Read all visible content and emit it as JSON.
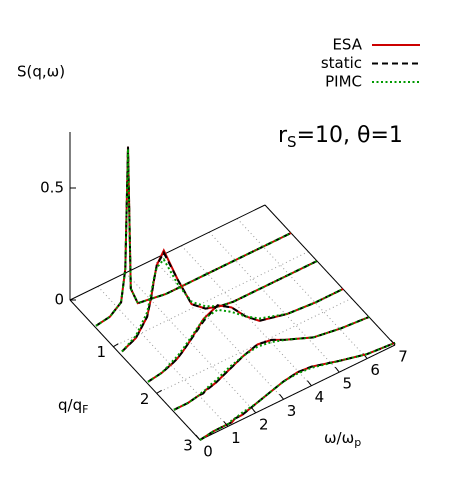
{
  "chart_data": {
    "type": "waterfall",
    "zlabel": "S(q,ω)",
    "xlabel": {
      "main": "ω/ω",
      "sub": "p"
    },
    "ylabel": {
      "main": "q/q",
      "sub": "F"
    },
    "annotation": {
      "main": "r",
      "sub": "S",
      "rest": "=10, θ=1"
    },
    "x": [
      0,
      0.5,
      0.9,
      1.05,
      1.15,
      1.25,
      1.5,
      2,
      2.5,
      3,
      3.5,
      4,
      5,
      6,
      7
    ],
    "q": [
      0.6,
      1.2,
      1.8,
      2.4,
      3.0
    ],
    "xlim": [
      0,
      7
    ],
    "xticks": [
      0,
      1,
      2,
      3,
      4,
      5,
      6,
      7
    ],
    "ylim": [
      0,
      3
    ],
    "yticks": [
      1,
      2,
      3
    ],
    "zlim": [
      0,
      0.75
    ],
    "zticks": [
      0,
      0.5
    ],
    "grid": true,
    "legend": "top-right",
    "series": [
      {
        "name": "ESA",
        "color": "#cc0000",
        "dash": "solid",
        "values": [
          [
            0.01,
            0.02,
            0.06,
            0.2,
            0.74,
            0.1,
            0.02,
            0.01,
            0,
            0,
            0,
            0,
            0,
            0,
            0
          ],
          [
            0.02,
            0.05,
            0.12,
            0.2,
            0.27,
            0.33,
            0.38,
            0.22,
            0.08,
            0.03,
            0.01,
            0,
            0,
            0,
            0
          ],
          [
            0.01,
            0.02,
            0.04,
            0.05,
            0.06,
            0.07,
            0.1,
            0.17,
            0.2,
            0.16,
            0.09,
            0.04,
            0.01,
            0,
            0
          ],
          [
            0.01,
            0.01,
            0.02,
            0.02,
            0.03,
            0.03,
            0.04,
            0.07,
            0.1,
            0.12,
            0.11,
            0.08,
            0.03,
            0.01,
            0
          ],
          [
            0,
            0.01,
            0.01,
            0.01,
            0.01,
            0.02,
            0.02,
            0.04,
            0.06,
            0.08,
            0.09,
            0.085,
            0.05,
            0.02,
            0.01
          ]
        ]
      },
      {
        "name": "static",
        "color": "#000000",
        "dash": "dashed",
        "values": [
          [
            0.01,
            0.02,
            0.06,
            0.2,
            0.74,
            0.1,
            0.02,
            0.01,
            0,
            0,
            0,
            0,
            0,
            0,
            0
          ],
          [
            0.02,
            0.05,
            0.12,
            0.2,
            0.27,
            0.33,
            0.37,
            0.22,
            0.08,
            0.03,
            0.01,
            0,
            0,
            0,
            0
          ],
          [
            0.01,
            0.02,
            0.04,
            0.05,
            0.06,
            0.07,
            0.1,
            0.16,
            0.2,
            0.16,
            0.09,
            0.04,
            0.01,
            0,
            0
          ],
          [
            0.01,
            0.01,
            0.02,
            0.02,
            0.03,
            0.03,
            0.04,
            0.07,
            0.1,
            0.12,
            0.11,
            0.08,
            0.03,
            0.01,
            0
          ],
          [
            0,
            0.01,
            0.01,
            0.01,
            0.01,
            0.02,
            0.02,
            0.04,
            0.06,
            0.08,
            0.09,
            0.085,
            0.05,
            0.02,
            0.01
          ]
        ]
      },
      {
        "name": "PIMC",
        "color": "#009900",
        "dash": "dotted",
        "values": [
          [
            0.01,
            0.02,
            0.06,
            0.2,
            0.73,
            0.1,
            0.02,
            0.01,
            0,
            0,
            0,
            0,
            0,
            0,
            0
          ],
          [
            0.02,
            0.06,
            0.14,
            0.22,
            0.28,
            0.32,
            0.34,
            0.2,
            0.09,
            0.04,
            0.01,
            0,
            0,
            0,
            0
          ],
          [
            0.01,
            0.02,
            0.05,
            0.06,
            0.07,
            0.08,
            0.11,
            0.17,
            0.18,
            0.14,
            0.09,
            0.05,
            0.01,
            0,
            0
          ],
          [
            0.01,
            0.01,
            0.02,
            0.03,
            0.03,
            0.04,
            0.05,
            0.08,
            0.1,
            0.11,
            0.1,
            0.08,
            0.03,
            0.01,
            0
          ],
          [
            0,
            0.01,
            0.01,
            0.01,
            0.02,
            0.02,
            0.03,
            0.04,
            0.06,
            0.08,
            0.085,
            0.08,
            0.05,
            0.02,
            0.01
          ]
        ]
      }
    ]
  }
}
